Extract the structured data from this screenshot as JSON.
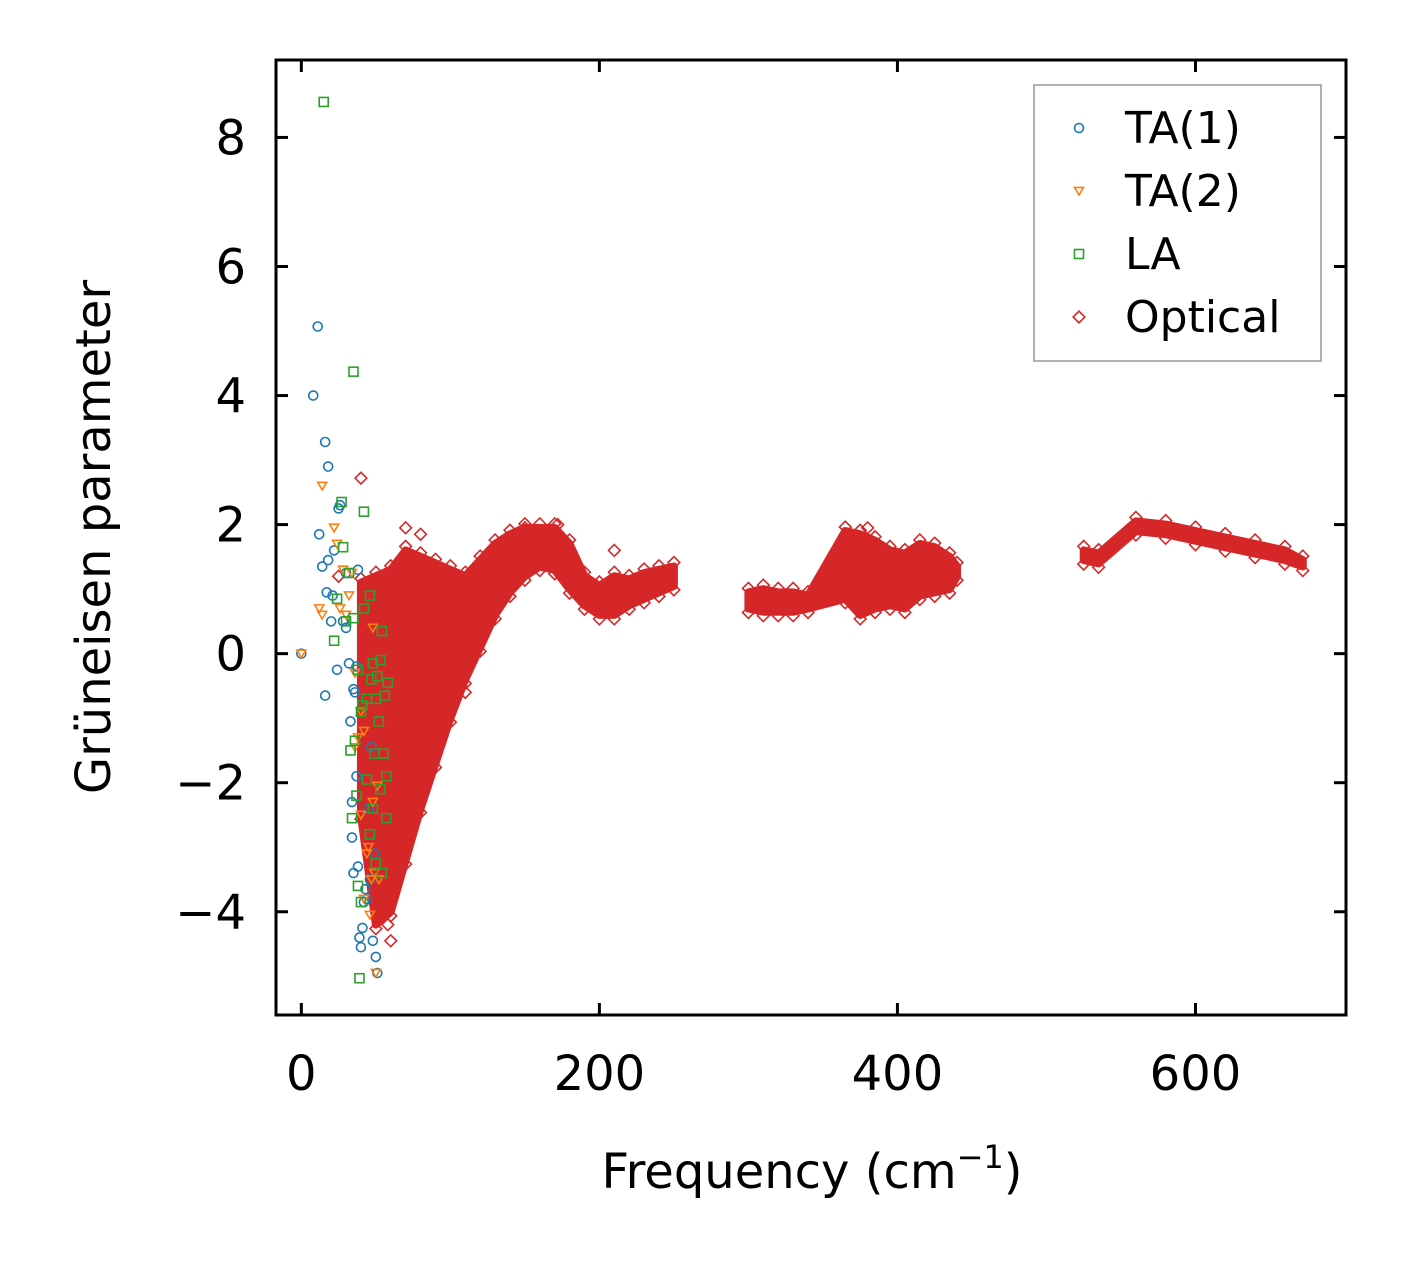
{
  "chart_data": {
    "type": "scatter",
    "title": "",
    "xlabel": "Frequency (cm",
    "xlabel_sup": "−1",
    "xlabel_end": ")",
    "ylabel": "Grüneisen parameter",
    "xlim": [
      -17,
      701
    ],
    "ylim": [
      -5.6,
      9.2
    ],
    "xticks": [
      0,
      200,
      400,
      600
    ],
    "xtick_labels": [
      "0",
      "200",
      "400",
      "600"
    ],
    "yticks": [
      -4,
      -2,
      0,
      2,
      4,
      6,
      8
    ],
    "ytick_labels": [
      "−4",
      "−2",
      "0",
      "2",
      "4",
      "6",
      "8"
    ],
    "legend_position": "top-right",
    "series": [
      {
        "name": "TA(1)",
        "marker": "circle",
        "color": "#1f77b4",
        "points": [
          [
            0,
            0
          ],
          [
            8,
            4.0
          ],
          [
            11,
            5.07
          ],
          [
            12,
            1.85
          ],
          [
            14,
            1.35
          ],
          [
            16,
            3.28
          ],
          [
            16,
            -0.65
          ],
          [
            17,
            0.95
          ],
          [
            18,
            2.9
          ],
          [
            18,
            1.45
          ],
          [
            20,
            0.5
          ],
          [
            21,
            0.9
          ],
          [
            22,
            1.6
          ],
          [
            24,
            -0.25
          ],
          [
            25,
            2.25
          ],
          [
            26,
            2.3
          ],
          [
            28,
            0.5
          ],
          [
            30,
            1.25
          ],
          [
            30,
            0.4
          ],
          [
            32,
            -0.15
          ],
          [
            33,
            -1.05
          ],
          [
            34,
            -2.3
          ],
          [
            34,
            -2.85
          ],
          [
            35,
            -3.4
          ],
          [
            35,
            -0.55
          ],
          [
            36,
            -0.6
          ],
          [
            37,
            -1.9
          ],
          [
            37,
            -0.2
          ],
          [
            38,
            1.3
          ],
          [
            38,
            -3.3
          ],
          [
            39,
            -4.4
          ],
          [
            40,
            -4.55
          ],
          [
            41,
            -4.25
          ],
          [
            42,
            -3.85
          ],
          [
            43,
            -3.65
          ],
          [
            44,
            -3.8
          ],
          [
            45,
            -2.4
          ],
          [
            46,
            -3.5
          ],
          [
            47,
            -1.45
          ],
          [
            48,
            -4.45
          ],
          [
            49,
            -3.1
          ],
          [
            50,
            -4.7
          ],
          [
            51,
            -4.95
          ]
        ]
      },
      {
        "name": "TA(2)",
        "marker": "triangle-down",
        "color": "#ff7f0e",
        "points": [
          [
            0,
            0
          ],
          [
            14,
            2.6
          ],
          [
            12,
            0.7
          ],
          [
            14,
            0.6
          ],
          [
            22,
            1.95
          ],
          [
            24,
            1.7
          ],
          [
            26,
            0.7
          ],
          [
            28,
            1.3
          ],
          [
            30,
            0.6
          ],
          [
            32,
            0.9
          ],
          [
            34,
            1.25
          ],
          [
            36,
            -0.3
          ],
          [
            36,
            -1.45
          ],
          [
            38,
            -1.3
          ],
          [
            40,
            -0.9
          ],
          [
            40,
            -2.5
          ],
          [
            42,
            -1.2
          ],
          [
            42,
            -3.8
          ],
          [
            44,
            -3.1
          ],
          [
            45,
            -3.0
          ],
          [
            46,
            -4.05
          ],
          [
            47,
            -3.5
          ],
          [
            48,
            0.4
          ],
          [
            48,
            -2.3
          ],
          [
            49,
            -3.4
          ],
          [
            50,
            -4.95
          ],
          [
            51,
            -2.05
          ],
          [
            52,
            -3.5
          ]
        ]
      },
      {
        "name": "LA",
        "marker": "square",
        "color": "#2ca02c",
        "points": [
          [
            15,
            8.55
          ],
          [
            35,
            4.37
          ],
          [
            27,
            2.35
          ],
          [
            42,
            2.2
          ],
          [
            22,
            0.2
          ],
          [
            24,
            0.85
          ],
          [
            28,
            1.65
          ],
          [
            30,
            0.5
          ],
          [
            32,
            1.25
          ],
          [
            33,
            -1.5
          ],
          [
            34,
            -2.55
          ],
          [
            35,
            0.55
          ],
          [
            36,
            -1.35
          ],
          [
            37,
            -2.2
          ],
          [
            38,
            -0.25
          ],
          [
            38,
            -3.6
          ],
          [
            39,
            -5.03
          ],
          [
            40,
            -0.9
          ],
          [
            40,
            -3.85
          ],
          [
            41,
            -0.8
          ],
          [
            42,
            0.7
          ],
          [
            44,
            -0.7
          ],
          [
            44,
            -1.95
          ],
          [
            46,
            0.9
          ],
          [
            46,
            -2.8
          ],
          [
            47,
            -0.4
          ],
          [
            48,
            -0.15
          ],
          [
            48,
            -2.4
          ],
          [
            49,
            -1.55
          ],
          [
            50,
            -0.7
          ],
          [
            50,
            -3.25
          ],
          [
            51,
            -0.35
          ],
          [
            52,
            -1.05
          ],
          [
            53,
            -0.1
          ],
          [
            53,
            -2.1
          ],
          [
            54,
            0.35
          ],
          [
            54,
            -3.4
          ],
          [
            55,
            -1.55
          ],
          [
            56,
            -0.65
          ],
          [
            57,
            -2.55
          ],
          [
            57,
            -1.9
          ],
          [
            58,
            -0.45
          ]
        ]
      },
      {
        "name": "Optical",
        "marker": "diamond",
        "color": "#d62728"
      }
    ],
    "optical_envelope": {
      "x": [
        40,
        50,
        60,
        70,
        80,
        90,
        100,
        110,
        120,
        130,
        140,
        150,
        160,
        170,
        180,
        190,
        200,
        210,
        220,
        230,
        240,
        250,
        300,
        310,
        320,
        330,
        340,
        365,
        375,
        385,
        395,
        405,
        415,
        425,
        435,
        440,
        525,
        535,
        560,
        580,
        600,
        620,
        640,
        660,
        672
      ],
      "upper": [
        1.1,
        1.2,
        1.3,
        1.6,
        1.5,
        1.4,
        1.3,
        1.2,
        1.45,
        1.7,
        1.85,
        1.95,
        1.95,
        1.95,
        1.7,
        1.2,
        1.05,
        1.2,
        1.15,
        1.25,
        1.3,
        1.35,
        0.95,
        1.0,
        0.95,
        0.95,
        0.9,
        1.9,
        1.85,
        1.75,
        1.6,
        1.55,
        1.7,
        1.65,
        1.5,
        1.35,
        1.6,
        1.55,
        2.05,
        2.0,
        1.9,
        1.8,
        1.7,
        1.6,
        1.45
      ],
      "lower": [
        -2.5,
        -4.2,
        -4.0,
        -3.2,
        -2.4,
        -1.7,
        -1.0,
        -0.4,
        0.1,
        0.6,
        0.95,
        1.2,
        1.35,
        1.3,
        1.0,
        0.75,
        0.6,
        0.6,
        0.75,
        0.85,
        0.95,
        1.05,
        0.7,
        0.65,
        0.65,
        0.65,
        0.7,
        0.85,
        0.6,
        0.7,
        0.75,
        0.7,
        0.9,
        0.95,
        1.0,
        1.2,
        1.45,
        1.4,
        1.9,
        1.85,
        1.75,
        1.65,
        1.55,
        1.45,
        1.35
      ],
      "outliers": [
        [
          40,
          2.72
        ],
        [
          25,
          1.2
        ],
        [
          70,
          1.95
        ],
        [
          80,
          1.85
        ],
        [
          150,
          1.95
        ],
        [
          172,
          2.0
        ],
        [
          380,
          1.95
        ],
        [
          210,
          1.6
        ],
        [
          48,
          -2.7
        ],
        [
          60,
          -4.45
        ],
        [
          58,
          -4.2
        ],
        [
          110,
          -0.6
        ],
        [
          95,
          -1.0
        ]
      ]
    }
  }
}
